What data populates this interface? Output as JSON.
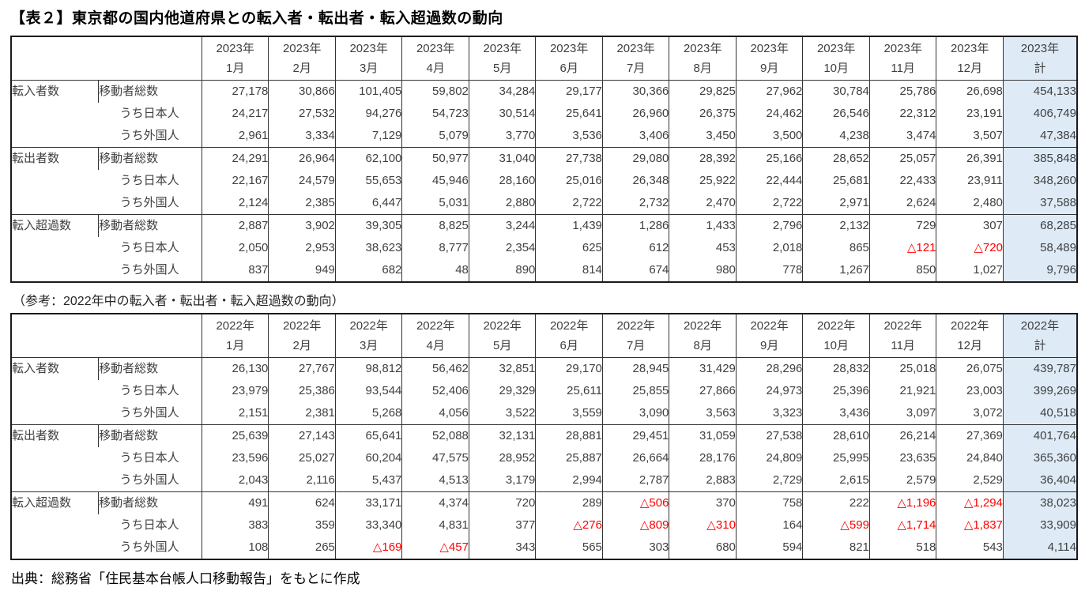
{
  "page": {
    "title": "【表２】東京都の国内他道府県との転入者・転出者・転入超過数の動向",
    "caption_2022": "（参考：2022年中の転入者・転出者・転入超過数の動向）",
    "source": "出典：総務省「住民基本台帳人口移動報告」をもとに作成"
  },
  "colors": {
    "total_column_bg": "#deebf7",
    "negative_value": "#ff0000",
    "text": "#3f3f3f",
    "border": "#333333"
  },
  "tables": [
    {
      "year_label": "2023年",
      "month_labels": [
        "1月",
        "2月",
        "3月",
        "4月",
        "5月",
        "6月",
        "7月",
        "8月",
        "9月",
        "10月",
        "11月",
        "12月"
      ],
      "total_label": "計",
      "row_groups": [
        {
          "label": "転入者数",
          "rows": [
            {
              "label": "移動者総数",
              "values": [
                "27,178",
                "30,866",
                "101,405",
                "59,802",
                "34,284",
                "29,177",
                "30,366",
                "29,825",
                "27,962",
                "30,784",
                "25,786",
                "26,698"
              ],
              "total": "454,133"
            },
            {
              "label": "うち日本人",
              "values": [
                "24,217",
                "27,532",
                "94,276",
                "54,723",
                "30,514",
                "25,641",
                "26,960",
                "26,375",
                "24,462",
                "26,546",
                "22,312",
                "23,191"
              ],
              "total": "406,749"
            },
            {
              "label": "うち外国人",
              "values": [
                "2,961",
                "3,334",
                "7,129",
                "5,079",
                "3,770",
                "3,536",
                "3,406",
                "3,450",
                "3,500",
                "4,238",
                "3,474",
                "3,507"
              ],
              "total": "47,384"
            }
          ]
        },
        {
          "label": "転出者数",
          "rows": [
            {
              "label": "移動者総数",
              "values": [
                "24,291",
                "26,964",
                "62,100",
                "50,977",
                "31,040",
                "27,738",
                "29,080",
                "28,392",
                "25,166",
                "28,652",
                "25,057",
                "26,391"
              ],
              "total": "385,848"
            },
            {
              "label": "うち日本人",
              "values": [
                "22,167",
                "24,579",
                "55,653",
                "45,946",
                "28,160",
                "25,016",
                "26,348",
                "25,922",
                "22,444",
                "25,681",
                "22,433",
                "23,911"
              ],
              "total": "348,260"
            },
            {
              "label": "うち外国人",
              "values": [
                "2,124",
                "2,385",
                "6,447",
                "5,031",
                "2,880",
                "2,722",
                "2,732",
                "2,470",
                "2,722",
                "2,971",
                "2,624",
                "2,480"
              ],
              "total": "37,588"
            }
          ]
        },
        {
          "label": "転入超過数",
          "rows": [
            {
              "label": "移動者総数",
              "values": [
                "2,887",
                "3,902",
                "39,305",
                "8,825",
                "3,244",
                "1,439",
                "1,286",
                "1,433",
                "2,796",
                "2,132",
                "729",
                "307"
              ],
              "total": "68,285"
            },
            {
              "label": "うち日本人",
              "values": [
                "2,050",
                "2,953",
                "38,623",
                "8,777",
                "2,354",
                "625",
                "612",
                "453",
                "2,018",
                "865",
                "△121",
                "△720"
              ],
              "total": "58,489"
            },
            {
              "label": "うち外国人",
              "values": [
                "837",
                "949",
                "682",
                "48",
                "890",
                "814",
                "674",
                "980",
                "778",
                "1,267",
                "850",
                "1,027"
              ],
              "total": "9,796"
            }
          ]
        }
      ]
    },
    {
      "year_label": "2022年",
      "month_labels": [
        "1月",
        "2月",
        "3月",
        "4月",
        "5月",
        "6月",
        "7月",
        "8月",
        "9月",
        "10月",
        "11月",
        "12月"
      ],
      "total_label": "計",
      "row_groups": [
        {
          "label": "転入者数",
          "rows": [
            {
              "label": "移動者総数",
              "values": [
                "26,130",
                "27,767",
                "98,812",
                "56,462",
                "32,851",
                "29,170",
                "28,945",
                "31,429",
                "28,296",
                "28,832",
                "25,018",
                "26,075"
              ],
              "total": "439,787"
            },
            {
              "label": "うち日本人",
              "values": [
                "23,979",
                "25,386",
                "93,544",
                "52,406",
                "29,329",
                "25,611",
                "25,855",
                "27,866",
                "24,973",
                "25,396",
                "21,921",
                "23,003"
              ],
              "total": "399,269"
            },
            {
              "label": "うち外国人",
              "values": [
                "2,151",
                "2,381",
                "5,268",
                "4,056",
                "3,522",
                "3,559",
                "3,090",
                "3,563",
                "3,323",
                "3,436",
                "3,097",
                "3,072"
              ],
              "total": "40,518"
            }
          ]
        },
        {
          "label": "転出者数",
          "rows": [
            {
              "label": "移動者総数",
              "values": [
                "25,639",
                "27,143",
                "65,641",
                "52,088",
                "32,131",
                "28,881",
                "29,451",
                "31,059",
                "27,538",
                "28,610",
                "26,214",
                "27,369"
              ],
              "total": "401,764"
            },
            {
              "label": "うち日本人",
              "values": [
                "23,596",
                "25,027",
                "60,204",
                "47,575",
                "28,952",
                "25,887",
                "26,664",
                "28,176",
                "24,809",
                "25,995",
                "23,635",
                "24,840"
              ],
              "total": "365,360"
            },
            {
              "label": "うち外国人",
              "values": [
                "2,043",
                "2,116",
                "5,437",
                "4,513",
                "3,179",
                "2,994",
                "2,787",
                "2,883",
                "2,729",
                "2,615",
                "2,579",
                "2,529"
              ],
              "total": "36,404"
            }
          ]
        },
        {
          "label": "転入超過数",
          "rows": [
            {
              "label": "移動者総数",
              "values": [
                "491",
                "624",
                "33,171",
                "4,374",
                "720",
                "289",
                "△506",
                "370",
                "758",
                "222",
                "△1,196",
                "△1,294"
              ],
              "total": "38,023"
            },
            {
              "label": "うち日本人",
              "values": [
                "383",
                "359",
                "33,340",
                "4,831",
                "377",
                "△276",
                "△809",
                "△310",
                "164",
                "△599",
                "△1,714",
                "△1,837"
              ],
              "total": "33,909"
            },
            {
              "label": "うち外国人",
              "values": [
                "108",
                "265",
                "△169",
                "△457",
                "343",
                "565",
                "303",
                "680",
                "594",
                "821",
                "518",
                "543"
              ],
              "total": "4,114"
            }
          ]
        }
      ]
    }
  ]
}
